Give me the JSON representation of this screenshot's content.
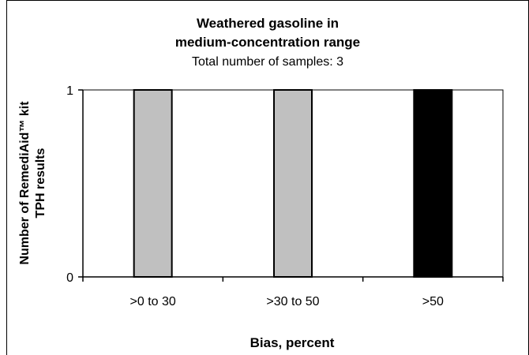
{
  "chart_data": {
    "type": "bar",
    "title_line1": "Weathered gasoline in",
    "title_line2": "medium-concentration range",
    "subtitle": "Total number of samples: 3",
    "xlabel": "Bias, percent",
    "ylabel_line1": "Number of RemediAid™ kit",
    "ylabel_line2": "TPH results",
    "categories": [
      ">0 to 30",
      ">30 to 50",
      ">50"
    ],
    "values": [
      1,
      1,
      1
    ],
    "bar_colors": [
      "#c0c0c0",
      "#c0c0c0",
      "#000000"
    ],
    "ylim": [
      0,
      1
    ],
    "yticks": [
      "0",
      "1"
    ],
    "grid": false,
    "legend": "none"
  }
}
